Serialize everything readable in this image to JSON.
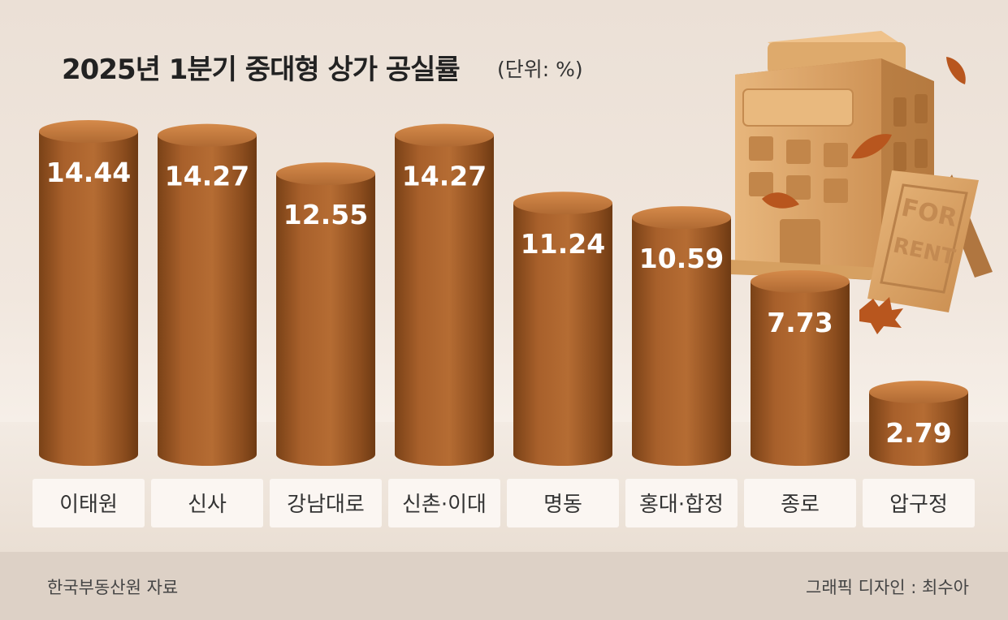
{
  "title": "2025년 1분기 중대형 상가 공실률",
  "unit": "(단위: %)",
  "source": "한국부동산원 자료",
  "credit": "그래픽 디자인 : 최수아",
  "illustration": {
    "sign_line1": "FOR",
    "sign_line2": "RENT"
  },
  "colors": {
    "bar": "#a65f2a",
    "bar_dark": "#7e4419",
    "bar_top": "#c77a3c",
    "label_box": "#fbf6f2",
    "building": "#d9a468",
    "leaf": "#b8561e"
  },
  "chart_data": {
    "type": "bar",
    "title": "2025년 1분기 중대형 상가 공실률",
    "unit": "(단위: %)",
    "categories": [
      "이태원",
      "신사",
      "강남대로",
      "신촌·이대",
      "명동",
      "홍대·합정",
      "종로",
      "압구정"
    ],
    "values": [
      14.44,
      14.27,
      12.55,
      14.27,
      11.24,
      10.59,
      7.73,
      2.79
    ],
    "value_labels": [
      "14.44",
      "14.27",
      "12.55",
      "14.27",
      "11.24",
      "10.59",
      "7.73",
      "2.79"
    ],
    "ylim": [
      0,
      14.44
    ]
  }
}
